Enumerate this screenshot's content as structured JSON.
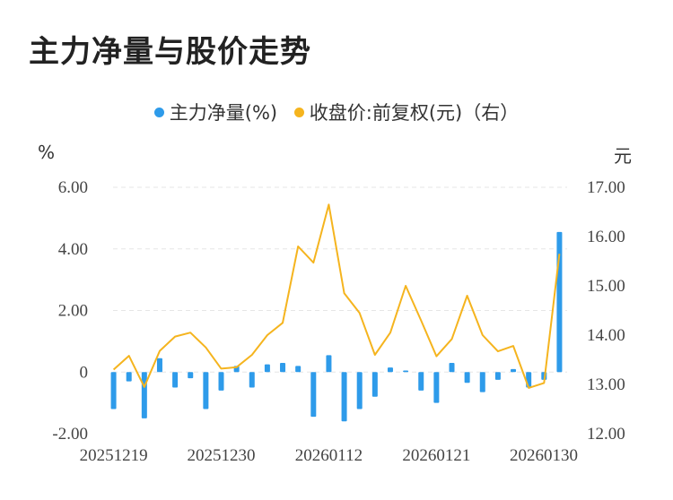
{
  "title": "主力净量与股价走势",
  "colors": {
    "bar": "#2E9BEA",
    "line": "#F5B41E",
    "grid": "#E6E6E6"
  },
  "chart_data": {
    "type": "bar+line",
    "legend": [
      {
        "name": "主力净量(%)",
        "color": "#2E9BEA"
      },
      {
        "name": "收盘价:前复权(元)（右）",
        "color": "#F5B41E"
      }
    ],
    "left_axis": {
      "unit": "%",
      "ticks": [
        "6.00",
        "4.00",
        "2.00",
        "0",
        "-2.00"
      ],
      "range": [
        -2,
        6
      ]
    },
    "right_axis": {
      "unit": "元",
      "ticks": [
        "17.00",
        "16.00",
        "15.00",
        "14.00",
        "13.00",
        "12.00"
      ],
      "range": [
        12,
        17
      ]
    },
    "x_tick_labels": [
      "20251219",
      "20251230",
      "20260112",
      "20260121",
      "20260130"
    ],
    "series": [
      {
        "name": "主力净量(%)",
        "kind": "bar",
        "values": [
          -1.2,
          -0.3,
          -1.5,
          0.45,
          -0.5,
          -0.2,
          -1.2,
          -0.6,
          0.2,
          -0.5,
          0.25,
          0.3,
          0.2,
          -1.45,
          0.55,
          -1.6,
          -1.2,
          -0.8,
          0.15,
          0.05,
          -0.6,
          -1.0,
          0.3,
          -0.35,
          -0.65,
          -0.25,
          0.1,
          -0.5,
          -0.25,
          4.55
        ]
      },
      {
        "name": "收盘价:前复权(元)",
        "kind": "line",
        "values": [
          13.3,
          13.58,
          12.95,
          13.68,
          13.97,
          14.05,
          13.75,
          13.32,
          13.35,
          13.6,
          14.0,
          14.25,
          15.8,
          15.47,
          16.65,
          14.85,
          14.45,
          13.6,
          14.05,
          15.0,
          14.3,
          13.57,
          13.92,
          14.8,
          14.0,
          13.67,
          13.78,
          12.93,
          13.03,
          15.65
        ]
      }
    ]
  }
}
